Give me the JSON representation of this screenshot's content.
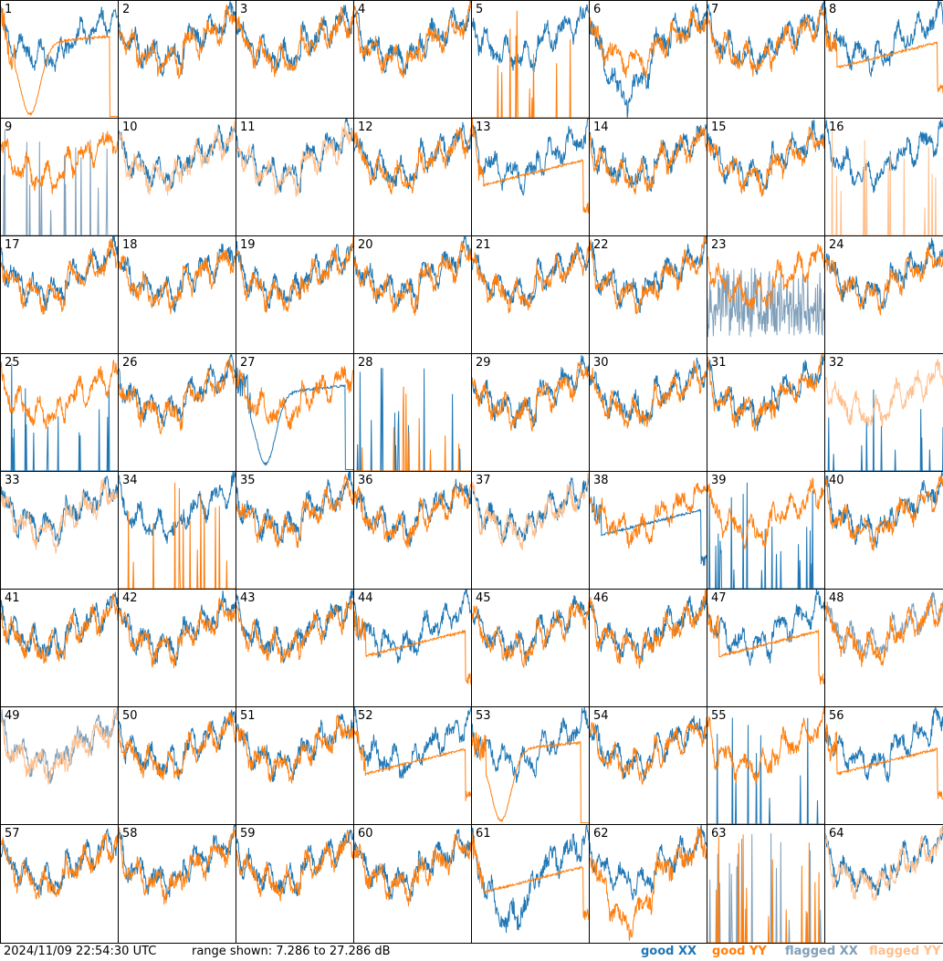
{
  "footer": {
    "timestamp": "2024/11/09 22:54:30 UTC",
    "range_label": "range shown: 7.286 to 27.286 dB",
    "legend": {
      "good_xx": "good XX",
      "good_yy": "good YY",
      "flagged_xx": "flagged XX",
      "flagged_yy": "flagged YY"
    }
  },
  "colors": {
    "good_xx": "#1f77b4",
    "good_yy": "#ff7f0e",
    "flagged_xx": "#7f9fba",
    "flagged_yy": "#ffbf8c"
  },
  "chart_data": {
    "type": "line",
    "grid": "8x8 small multiples",
    "ylim": [
      7.286,
      27.286
    ],
    "panels": [
      {
        "label": "1",
        "xx": "good",
        "yy": "good",
        "xx_style": "normal",
        "yy_style": "dip"
      },
      {
        "label": "2",
        "xx": "good",
        "yy": "good",
        "xx_style": "normal",
        "yy_style": "normal"
      },
      {
        "label": "3",
        "xx": "good",
        "yy": "good",
        "xx_style": "normal",
        "yy_style": "normal"
      },
      {
        "label": "4",
        "xx": "good",
        "yy": "good",
        "xx_style": "normal",
        "yy_style": "normal"
      },
      {
        "label": "5",
        "xx": "good",
        "yy": "good",
        "xx_style": "normal",
        "yy_style": "spikes"
      },
      {
        "label": "6",
        "xx": "good",
        "yy": "good",
        "xx_style": "lowdip",
        "yy_style": "normal"
      },
      {
        "label": "7",
        "xx": "good",
        "yy": "good",
        "xx_style": "normal",
        "yy_style": "normal"
      },
      {
        "label": "8",
        "xx": "good",
        "yy": "good",
        "xx_style": "normal",
        "yy_style": "smooth"
      },
      {
        "label": "9",
        "xx": "flagged",
        "yy": "good",
        "xx_style": "spikes",
        "yy_style": "normal"
      },
      {
        "label": "10",
        "xx": "good",
        "yy": "flagged",
        "xx_style": "normal",
        "yy_style": "normal"
      },
      {
        "label": "11",
        "xx": "good",
        "yy": "flagged",
        "xx_style": "normal",
        "yy_style": "normal"
      },
      {
        "label": "12",
        "xx": "good",
        "yy": "good",
        "xx_style": "normal",
        "yy_style": "normal"
      },
      {
        "label": "13",
        "xx": "good",
        "yy": "good",
        "xx_style": "normal",
        "yy_style": "smooth"
      },
      {
        "label": "14",
        "xx": "good",
        "yy": "good",
        "xx_style": "normal",
        "yy_style": "normal"
      },
      {
        "label": "15",
        "xx": "good",
        "yy": "good",
        "xx_style": "normal",
        "yy_style": "normal"
      },
      {
        "label": "16",
        "xx": "good",
        "yy": "flagged",
        "xx_style": "normal",
        "yy_style": "spikes"
      },
      {
        "label": "17",
        "xx": "good",
        "yy": "good",
        "xx_style": "normal",
        "yy_style": "normal"
      },
      {
        "label": "18",
        "xx": "good",
        "yy": "good",
        "xx_style": "normal",
        "yy_style": "normal"
      },
      {
        "label": "19",
        "xx": "good",
        "yy": "good",
        "xx_style": "normal",
        "yy_style": "normal"
      },
      {
        "label": "20",
        "xx": "good",
        "yy": "good",
        "xx_style": "normal",
        "yy_style": "normal"
      },
      {
        "label": "21",
        "xx": "good",
        "yy": "good",
        "xx_style": "normal",
        "yy_style": "normal"
      },
      {
        "label": "22",
        "xx": "good",
        "yy": "good",
        "xx_style": "normal",
        "yy_style": "normal"
      },
      {
        "label": "23",
        "xx": "flagged",
        "yy": "good",
        "xx_style": "noisylow",
        "yy_style": "normal"
      },
      {
        "label": "24",
        "xx": "good",
        "yy": "good",
        "xx_style": "normal",
        "yy_style": "normal"
      },
      {
        "label": "25",
        "xx": "good",
        "yy": "good",
        "xx_style": "spikes",
        "yy_style": "normal"
      },
      {
        "label": "26",
        "xx": "good",
        "yy": "good",
        "xx_style": "normal",
        "yy_style": "normal"
      },
      {
        "label": "27",
        "xx": "good",
        "yy": "good",
        "xx_style": "dip",
        "yy_style": "normal"
      },
      {
        "label": "28",
        "xx": "good",
        "yy": "good",
        "xx_style": "spikes",
        "yy_style": "spikes"
      },
      {
        "label": "29",
        "xx": "good",
        "yy": "good",
        "xx_style": "normal",
        "yy_style": "normal"
      },
      {
        "label": "30",
        "xx": "good",
        "yy": "good",
        "xx_style": "normal",
        "yy_style": "normal"
      },
      {
        "label": "31",
        "xx": "good",
        "yy": "good",
        "xx_style": "normal",
        "yy_style": "normal"
      },
      {
        "label": "32",
        "xx": "good",
        "yy": "flagged",
        "xx_style": "spikes",
        "yy_style": "normal"
      },
      {
        "label": "33",
        "xx": "good",
        "yy": "flagged",
        "xx_style": "normal",
        "yy_style": "normal"
      },
      {
        "label": "34",
        "xx": "good",
        "yy": "good",
        "xx_style": "normal",
        "yy_style": "spikes"
      },
      {
        "label": "35",
        "xx": "good",
        "yy": "good",
        "xx_style": "normal",
        "yy_style": "normal"
      },
      {
        "label": "36",
        "xx": "good",
        "yy": "good",
        "xx_style": "normal",
        "yy_style": "normal"
      },
      {
        "label": "37",
        "xx": "good",
        "yy": "flagged",
        "xx_style": "normal",
        "yy_style": "normal"
      },
      {
        "label": "38",
        "xx": "good",
        "yy": "good",
        "xx_style": "smooth",
        "yy_style": "normal"
      },
      {
        "label": "39",
        "xx": "good",
        "yy": "good",
        "xx_style": "spikes",
        "yy_style": "normal"
      },
      {
        "label": "40",
        "xx": "good",
        "yy": "good",
        "xx_style": "normal",
        "yy_style": "normal"
      },
      {
        "label": "41",
        "xx": "good",
        "yy": "good",
        "xx_style": "normal",
        "yy_style": "normal"
      },
      {
        "label": "42",
        "xx": "good",
        "yy": "good",
        "xx_style": "normal",
        "yy_style": "normal"
      },
      {
        "label": "43",
        "xx": "good",
        "yy": "good",
        "xx_style": "normal",
        "yy_style": "normal"
      },
      {
        "label": "44",
        "xx": "good",
        "yy": "good",
        "xx_style": "normal",
        "yy_style": "smooth"
      },
      {
        "label": "45",
        "xx": "good",
        "yy": "good",
        "xx_style": "normal",
        "yy_style": "normal"
      },
      {
        "label": "46",
        "xx": "good",
        "yy": "good",
        "xx_style": "normal",
        "yy_style": "normal"
      },
      {
        "label": "47",
        "xx": "good",
        "yy": "good",
        "xx_style": "normal",
        "yy_style": "smooth"
      },
      {
        "label": "48",
        "xx": "flagged",
        "yy": "good",
        "xx_style": "normal",
        "yy_style": "normal"
      },
      {
        "label": "49",
        "xx": "flagged",
        "yy": "flagged",
        "xx_style": "normal",
        "yy_style": "normal"
      },
      {
        "label": "50",
        "xx": "good",
        "yy": "good",
        "xx_style": "normal",
        "yy_style": "normal"
      },
      {
        "label": "51",
        "xx": "good",
        "yy": "good",
        "xx_style": "normal",
        "yy_style": "normal"
      },
      {
        "label": "52",
        "xx": "good",
        "yy": "good",
        "xx_style": "normal",
        "yy_style": "smooth"
      },
      {
        "label": "53",
        "xx": "good",
        "yy": "good",
        "xx_style": "normal",
        "yy_style": "dip"
      },
      {
        "label": "54",
        "xx": "good",
        "yy": "good",
        "xx_style": "normal",
        "yy_style": "normal"
      },
      {
        "label": "55",
        "xx": "good",
        "yy": "good",
        "xx_style": "spikes",
        "yy_style": "normal"
      },
      {
        "label": "56",
        "xx": "good",
        "yy": "good",
        "xx_style": "normal",
        "yy_style": "smooth"
      },
      {
        "label": "57",
        "xx": "good",
        "yy": "good",
        "xx_style": "normal",
        "yy_style": "normal"
      },
      {
        "label": "58",
        "xx": "good",
        "yy": "good",
        "xx_style": "normal",
        "yy_style": "normal"
      },
      {
        "label": "59",
        "xx": "good",
        "yy": "good",
        "xx_style": "normal",
        "yy_style": "normal"
      },
      {
        "label": "60",
        "xx": "good",
        "yy": "good",
        "xx_style": "normal",
        "yy_style": "normal"
      },
      {
        "label": "61",
        "xx": "good",
        "yy": "good",
        "xx_style": "lowdip",
        "yy_style": "smooth"
      },
      {
        "label": "62",
        "xx": "good",
        "yy": "good",
        "xx_style": "normal",
        "yy_style": "lowdip"
      },
      {
        "label": "63",
        "xx": "flagged",
        "yy": "good",
        "xx_style": "spikes",
        "yy_style": "spikes"
      },
      {
        "label": "64",
        "xx": "good",
        "yy": "flagged",
        "xx_style": "normal",
        "yy_style": "normal"
      }
    ]
  }
}
